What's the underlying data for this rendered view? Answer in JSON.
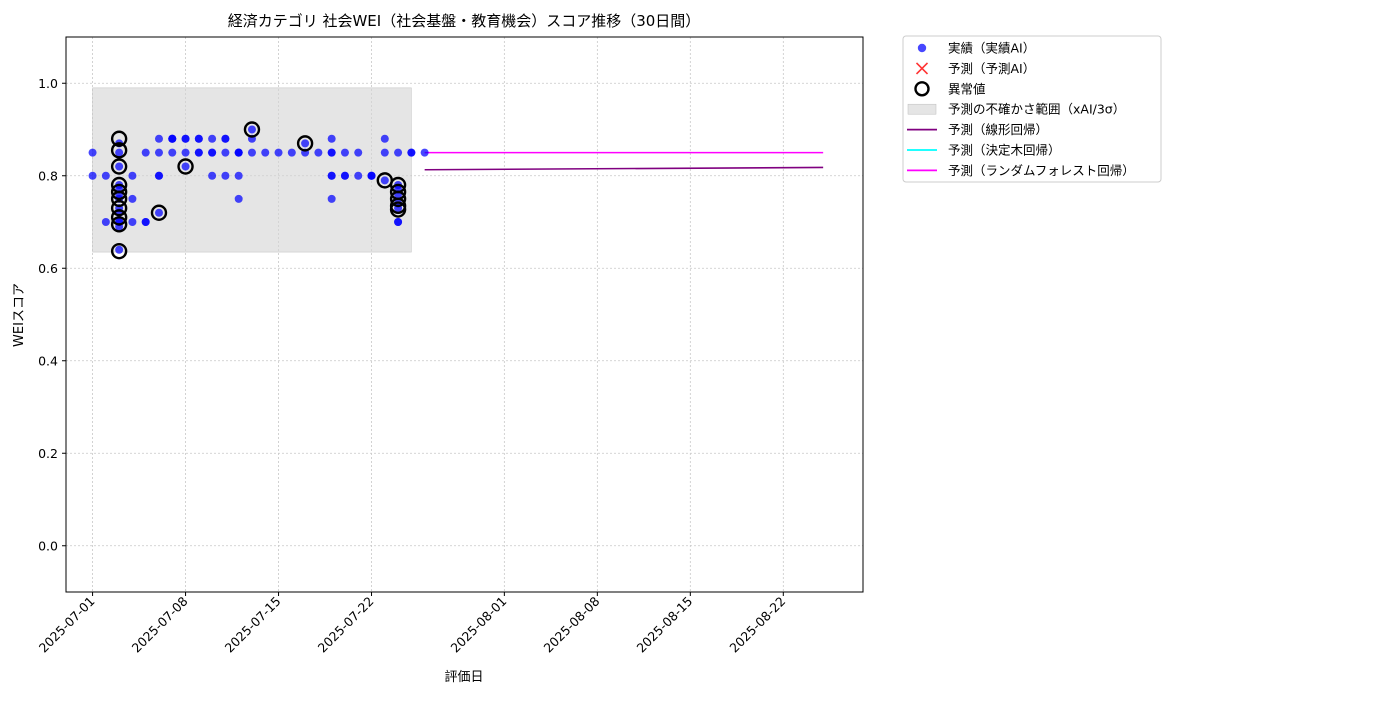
{
  "chart_data": {
    "type": "scatter",
    "title": "経済カテゴリ 社会WEI（社会基盤・教育機会）スコア推移（30日間）",
    "xlabel": "評価日",
    "ylabel": "WEIスコア",
    "xlim": [
      "2025-06-29",
      "2025-08-28"
    ],
    "ylim": [
      -0.1,
      1.1
    ],
    "yticks": [
      0.0,
      0.2,
      0.4,
      0.6,
      0.8,
      1.0
    ],
    "ytick_labels": [
      "0.0",
      "0.2",
      "0.4",
      "0.6",
      "0.8",
      "1.0"
    ],
    "xticks": [
      "2025-07-01",
      "2025-07-08",
      "2025-07-15",
      "2025-07-22",
      "2025-08-01",
      "2025-08-08",
      "2025-08-15",
      "2025-08-22"
    ],
    "grid": true,
    "legend_position": "outside upper-right",
    "colors": {
      "actual": "#0000ff",
      "predicted": "#ff3333",
      "anomaly": "#000000",
      "uncertainty": "#d3d3d3",
      "linear": "#800080",
      "tree": "#00ffff",
      "forest": "#ff00ff"
    },
    "legend": [
      {
        "key": "actual",
        "label": "実績（実績AI）",
        "marker": "circle"
      },
      {
        "key": "predicted",
        "label": "予測（予測AI）",
        "marker": "x"
      },
      {
        "key": "anomaly",
        "label": "異常値",
        "marker": "ring"
      },
      {
        "key": "uncertainty",
        "label": "予測の不確かさ範囲（xAI/3σ）",
        "marker": "patch"
      },
      {
        "key": "linear",
        "label": "予測（線形回帰）",
        "marker": "line"
      },
      {
        "key": "tree",
        "label": "予測（決定木回帰）",
        "marker": "line"
      },
      {
        "key": "forest",
        "label": "予測（ランダムフォレスト回帰）",
        "marker": "line"
      }
    ],
    "uncertainty_band": {
      "x": [
        "2025-07-01",
        "2025-07-25"
      ],
      "y": [
        0.635,
        0.99
      ]
    },
    "series": [
      {
        "name": "実績（実績AI）",
        "points": [
          [
            "2025-07-01",
            0.85
          ],
          [
            "2025-07-01",
            0.8
          ],
          [
            "2025-07-02",
            0.8
          ],
          [
            "2025-07-02",
            0.7
          ],
          [
            "2025-07-03",
            0.7
          ],
          [
            "2025-07-03",
            0.7
          ],
          [
            "2025-07-03",
            0.87
          ],
          [
            "2025-07-03",
            0.85
          ],
          [
            "2025-07-03",
            0.82
          ],
          [
            "2025-07-03",
            0.78
          ],
          [
            "2025-07-03",
            0.77
          ],
          [
            "2025-07-03",
            0.76
          ],
          [
            "2025-07-03",
            0.75
          ],
          [
            "2025-07-03",
            0.73
          ],
          [
            "2025-07-03",
            0.72
          ],
          [
            "2025-07-03",
            0.69
          ],
          [
            "2025-07-03",
            0.64
          ],
          [
            "2025-07-04",
            0.8
          ],
          [
            "2025-07-04",
            0.75
          ],
          [
            "2025-07-04",
            0.7
          ],
          [
            "2025-07-05",
            0.7
          ],
          [
            "2025-07-05",
            0.7
          ],
          [
            "2025-07-05",
            0.85
          ],
          [
            "2025-07-06",
            0.72
          ],
          [
            "2025-07-06",
            0.85
          ],
          [
            "2025-07-06",
            0.8
          ],
          [
            "2025-07-06",
            0.8
          ],
          [
            "2025-07-06",
            0.88
          ],
          [
            "2025-07-07",
            0.85
          ],
          [
            "2025-07-07",
            0.88
          ],
          [
            "2025-07-07",
            0.88
          ],
          [
            "2025-07-07",
            0.88
          ],
          [
            "2025-07-08",
            0.88
          ],
          [
            "2025-07-08",
            0.85
          ],
          [
            "2025-07-08",
            0.82
          ],
          [
            "2025-07-08",
            0.88
          ],
          [
            "2025-07-09",
            0.88
          ],
          [
            "2025-07-09",
            0.85
          ],
          [
            "2025-07-09",
            0.88
          ],
          [
            "2025-07-09",
            0.85
          ],
          [
            "2025-07-10",
            0.88
          ],
          [
            "2025-07-10",
            0.8
          ],
          [
            "2025-07-10",
            0.85
          ],
          [
            "2025-07-10",
            0.85
          ],
          [
            "2025-07-11",
            0.88
          ],
          [
            "2025-07-11",
            0.8
          ],
          [
            "2025-07-11",
            0.85
          ],
          [
            "2025-07-11",
            0.88
          ],
          [
            "2025-07-12",
            0.85
          ],
          [
            "2025-07-12",
            0.85
          ],
          [
            "2025-07-12",
            0.85
          ],
          [
            "2025-07-12",
            0.8
          ],
          [
            "2025-07-12",
            0.75
          ],
          [
            "2025-07-13",
            0.85
          ],
          [
            "2025-07-13",
            0.9
          ],
          [
            "2025-07-13",
            0.88
          ],
          [
            "2025-07-14",
            0.85
          ],
          [
            "2025-07-15",
            0.85
          ],
          [
            "2025-07-16",
            0.85
          ],
          [
            "2025-07-17",
            0.87
          ],
          [
            "2025-07-17",
            0.85
          ],
          [
            "2025-07-18",
            0.85
          ],
          [
            "2025-07-19",
            0.88
          ],
          [
            "2025-07-19",
            0.85
          ],
          [
            "2025-07-19",
            0.85
          ],
          [
            "2025-07-19",
            0.8
          ],
          [
            "2025-07-19",
            0.8
          ],
          [
            "2025-07-19",
            0.75
          ],
          [
            "2025-07-20",
            0.85
          ],
          [
            "2025-07-20",
            0.8
          ],
          [
            "2025-07-20",
            0.8
          ],
          [
            "2025-07-21",
            0.8
          ],
          [
            "2025-07-21",
            0.85
          ],
          [
            "2025-07-22",
            0.8
          ],
          [
            "2025-07-22",
            0.8
          ],
          [
            "2025-07-22",
            0.8
          ],
          [
            "2025-07-23",
            0.88
          ],
          [
            "2025-07-23",
            0.85
          ],
          [
            "2025-07-23",
            0.79
          ],
          [
            "2025-07-24",
            0.85
          ],
          [
            "2025-07-24",
            0.78
          ],
          [
            "2025-07-24",
            0.77
          ],
          [
            "2025-07-24",
            0.76
          ],
          [
            "2025-07-24",
            0.74
          ],
          [
            "2025-07-24",
            0.73
          ],
          [
            "2025-07-24",
            0.7
          ],
          [
            "2025-07-24",
            0.7
          ],
          [
            "2025-07-25",
            0.85
          ],
          [
            "2025-07-25",
            0.85
          ],
          [
            "2025-07-26",
            0.85
          ]
        ]
      },
      {
        "name": "異常値",
        "points": [
          [
            "2025-07-03",
            0.88
          ],
          [
            "2025-07-03",
            0.855
          ],
          [
            "2025-07-03",
            0.82
          ],
          [
            "2025-07-03",
            0.78
          ],
          [
            "2025-07-03",
            0.765
          ],
          [
            "2025-07-03",
            0.75
          ],
          [
            "2025-07-03",
            0.73
          ],
          [
            "2025-07-03",
            0.71
          ],
          [
            "2025-07-03",
            0.695
          ],
          [
            "2025-07-03",
            0.637
          ],
          [
            "2025-07-06",
            0.72
          ],
          [
            "2025-07-08",
            0.82
          ],
          [
            "2025-07-13",
            0.9
          ],
          [
            "2025-07-17",
            0.87
          ],
          [
            "2025-07-23",
            0.79
          ],
          [
            "2025-07-24",
            0.78
          ],
          [
            "2025-07-24",
            0.765
          ],
          [
            "2025-07-24",
            0.75
          ],
          [
            "2025-07-24",
            0.735
          ],
          [
            "2025-07-24",
            0.727
          ]
        ]
      },
      {
        "name": "予測（線形回帰）",
        "line": [
          [
            "2025-07-26",
            0.813
          ],
          [
            "2025-08-25",
            0.818
          ]
        ]
      },
      {
        "name": "予測（ランダムフォレスト回帰）",
        "line": [
          [
            "2025-07-26",
            0.85
          ],
          [
            "2025-08-25",
            0.85
          ]
        ]
      }
    ]
  }
}
